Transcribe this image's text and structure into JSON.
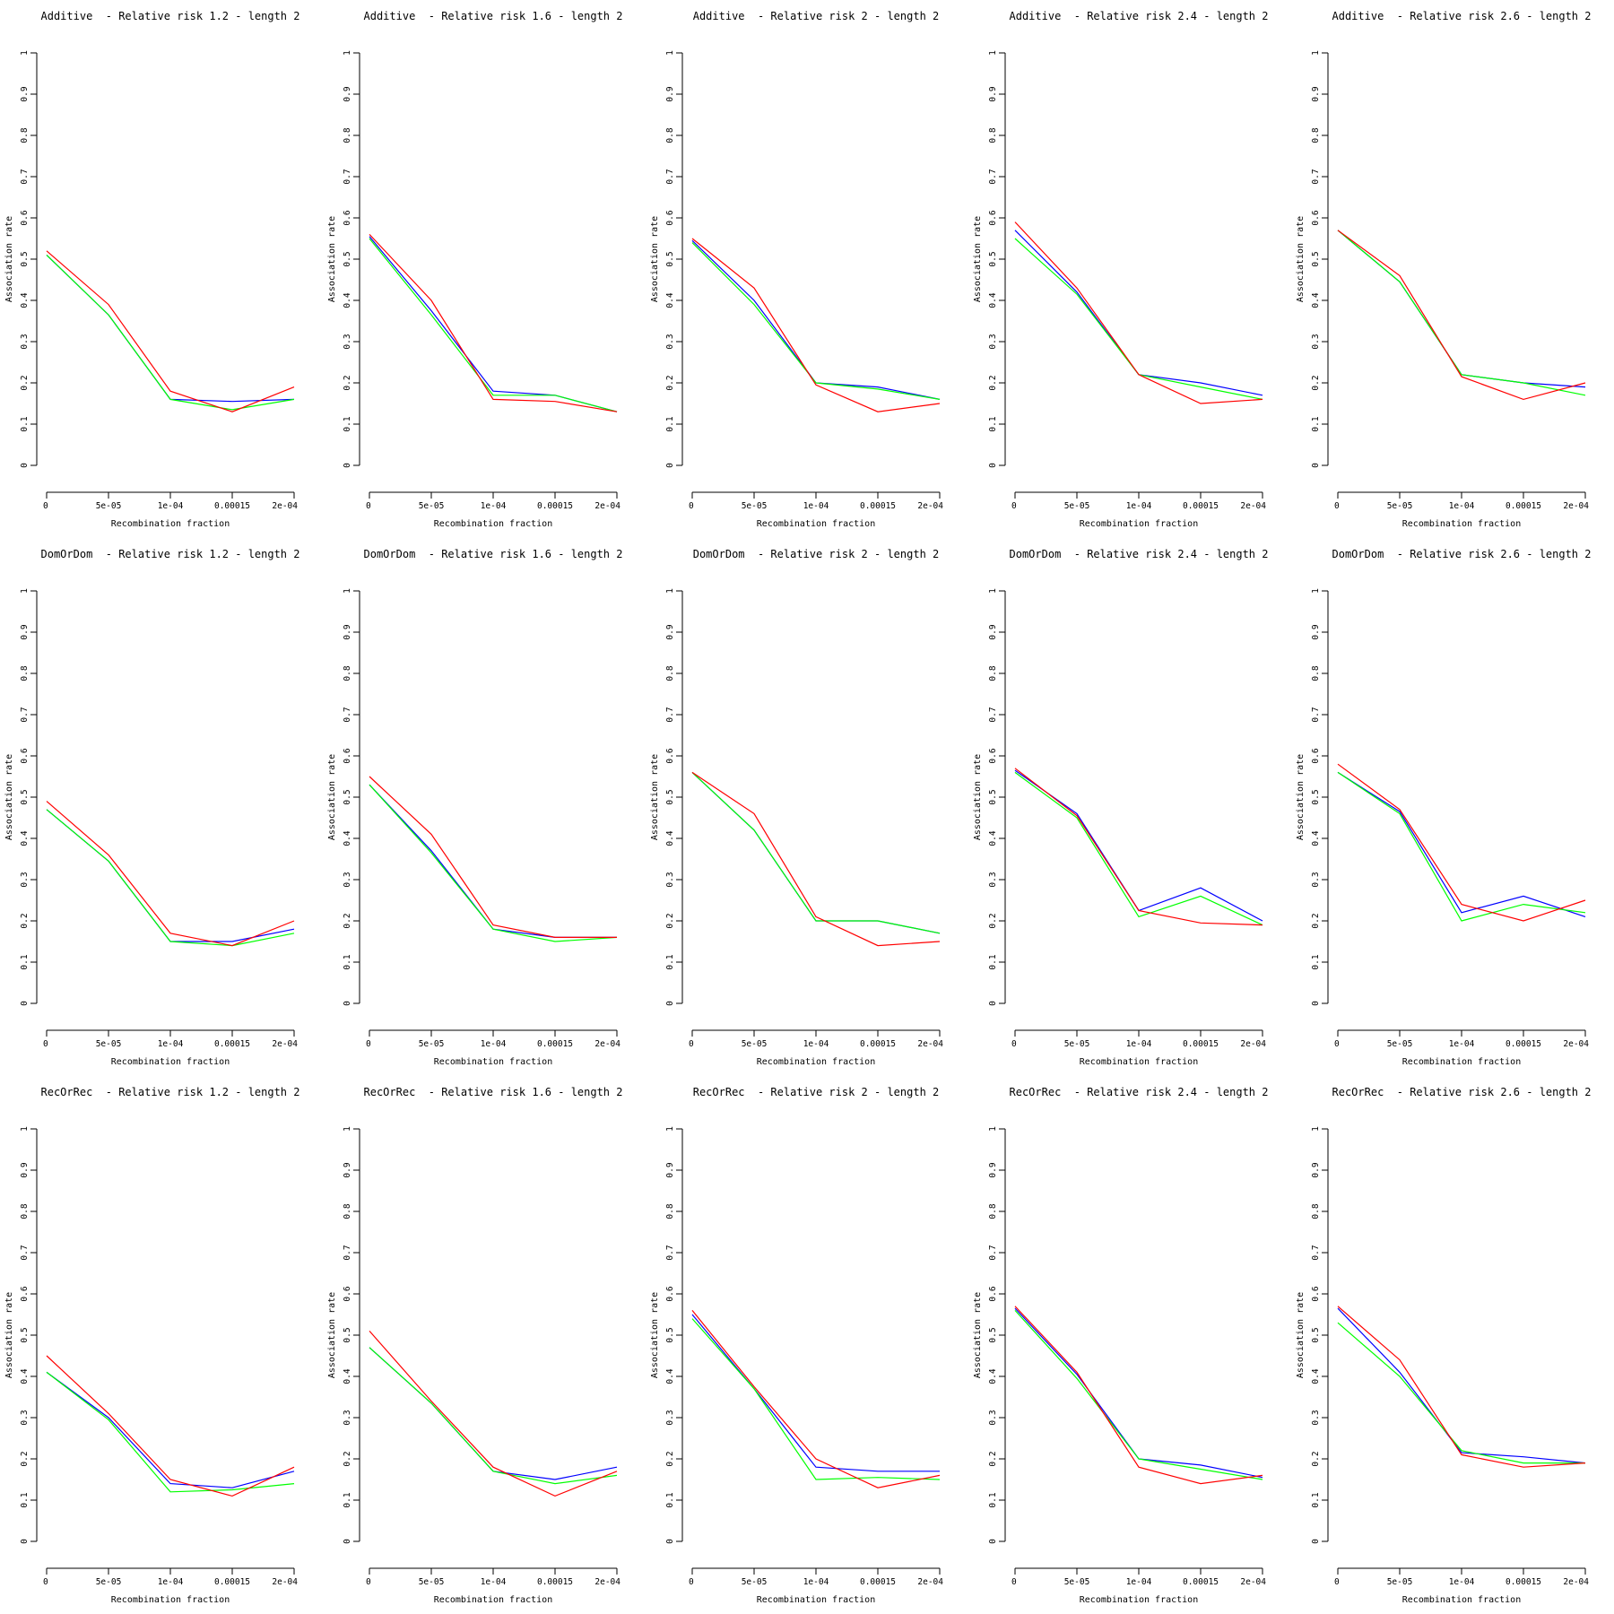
{
  "figure": {
    "rows": [
      "Additive",
      "DomOrDom",
      "RecOrRec"
    ],
    "relative_risks": [
      "1.2",
      "1.6",
      "2",
      "2.4",
      "2.6"
    ],
    "length": "2",
    "background": "#ffffff",
    "text_color": "#000000"
  },
  "axes": {
    "xlabel": "Recombination fraction",
    "ylabel": "Association rate",
    "x_tick_labels": [
      "0",
      "5e-05",
      "1e-04",
      "0.00015",
      "2e-04"
    ],
    "y_tick_labels": [
      "0",
      "0.1",
      "0.2",
      "0.3",
      "0.4",
      "0.5",
      "0.6",
      "0.7",
      "0.8",
      "0.9",
      "1"
    ],
    "ylim": [
      0,
      1
    ],
    "grid": false,
    "legend": "none"
  },
  "colors": {
    "red": "#ff0000",
    "green": "#00ff00",
    "blue": "#0000ff"
  },
  "chart_data": [
    {
      "type": "line",
      "title": "Additive  - Relative risk 1.2 - length 2",
      "model": "Additive",
      "relative_risk": 1.2,
      "length": 2,
      "x": [
        0,
        5e-05,
        0.0001,
        0.00015,
        0.0002
      ],
      "ylim": [
        0,
        1
      ],
      "series": [
        {
          "name": "blue",
          "color": "#0000ff",
          "values": [
            0.51,
            0.365,
            0.16,
            0.155,
            0.16
          ]
        },
        {
          "name": "green",
          "color": "#00ff00",
          "values": [
            0.51,
            0.365,
            0.16,
            0.135,
            0.16
          ]
        },
        {
          "name": "red",
          "color": "#ff0000",
          "values": [
            0.52,
            0.39,
            0.18,
            0.13,
            0.19
          ]
        }
      ]
    },
    {
      "type": "line",
      "title": "Additive  - Relative risk 1.6 - length 2",
      "model": "Additive",
      "relative_risk": 1.6,
      "length": 2,
      "x": [
        0,
        5e-05,
        0.0001,
        0.00015,
        0.0002
      ],
      "ylim": [
        0,
        1
      ],
      "series": [
        {
          "name": "blue",
          "color": "#0000ff",
          "values": [
            0.555,
            0.375,
            0.18,
            0.17,
            0.13
          ]
        },
        {
          "name": "green",
          "color": "#00ff00",
          "values": [
            0.55,
            0.365,
            0.17,
            0.17,
            0.13
          ]
        },
        {
          "name": "red",
          "color": "#ff0000",
          "values": [
            0.56,
            0.4,
            0.16,
            0.155,
            0.13
          ]
        }
      ]
    },
    {
      "type": "line",
      "title": "Additive  - Relative risk 2 - length 2",
      "model": "Additive",
      "relative_risk": 2,
      "length": 2,
      "x": [
        0,
        5e-05,
        0.0001,
        0.00015,
        0.0002
      ],
      "ylim": [
        0,
        1
      ],
      "series": [
        {
          "name": "blue",
          "color": "#0000ff",
          "values": [
            0.545,
            0.4,
            0.2,
            0.19,
            0.16
          ]
        },
        {
          "name": "green",
          "color": "#00ff00",
          "values": [
            0.54,
            0.39,
            0.2,
            0.185,
            0.16
          ]
        },
        {
          "name": "red",
          "color": "#ff0000",
          "values": [
            0.55,
            0.43,
            0.195,
            0.13,
            0.15
          ]
        }
      ]
    },
    {
      "type": "line",
      "title": "Additive  - Relative risk 2.4 - length 2",
      "model": "Additive",
      "relative_risk": 2.4,
      "length": 2,
      "x": [
        0,
        5e-05,
        0.0001,
        0.00015,
        0.0002
      ],
      "ylim": [
        0,
        1
      ],
      "series": [
        {
          "name": "blue",
          "color": "#0000ff",
          "values": [
            0.57,
            0.42,
            0.22,
            0.2,
            0.17
          ]
        },
        {
          "name": "green",
          "color": "#00ff00",
          "values": [
            0.55,
            0.415,
            0.22,
            0.19,
            0.16
          ]
        },
        {
          "name": "red",
          "color": "#ff0000",
          "values": [
            0.59,
            0.43,
            0.22,
            0.15,
            0.16
          ]
        }
      ]
    },
    {
      "type": "line",
      "title": "Additive  - Relative risk 2.6 - length 2",
      "model": "Additive",
      "relative_risk": 2.6,
      "length": 2,
      "x": [
        0,
        5e-05,
        0.0001,
        0.00015,
        0.0002
      ],
      "ylim": [
        0,
        1
      ],
      "series": [
        {
          "name": "blue",
          "color": "#0000ff",
          "values": [
            0.57,
            0.445,
            0.22,
            0.2,
            0.19
          ]
        },
        {
          "name": "green",
          "color": "#00ff00",
          "values": [
            0.57,
            0.445,
            0.22,
            0.2,
            0.17
          ]
        },
        {
          "name": "red",
          "color": "#ff0000",
          "values": [
            0.57,
            0.46,
            0.215,
            0.16,
            0.2
          ]
        }
      ]
    },
    {
      "type": "line",
      "title": "DomOrDom  - Relative risk 1.2 - length 2",
      "model": "DomOrDom",
      "relative_risk": 1.2,
      "length": 2,
      "x": [
        0,
        5e-05,
        0.0001,
        0.00015,
        0.0002
      ],
      "ylim": [
        0,
        1
      ],
      "series": [
        {
          "name": "blue",
          "color": "#0000ff",
          "values": [
            0.47,
            0.345,
            0.15,
            0.15,
            0.18
          ]
        },
        {
          "name": "green",
          "color": "#00ff00",
          "values": [
            0.47,
            0.345,
            0.15,
            0.14,
            0.17
          ]
        },
        {
          "name": "red",
          "color": "#ff0000",
          "values": [
            0.49,
            0.36,
            0.17,
            0.14,
            0.2
          ]
        }
      ]
    },
    {
      "type": "line",
      "title": "DomOrDom  - Relative risk 1.6 - length 2",
      "model": "DomOrDom",
      "relative_risk": 1.6,
      "length": 2,
      "x": [
        0,
        5e-05,
        0.0001,
        0.00015,
        0.0002
      ],
      "ylim": [
        0,
        1
      ],
      "series": [
        {
          "name": "blue",
          "color": "#0000ff",
          "values": [
            0.53,
            0.37,
            0.18,
            0.16,
            0.16
          ]
        },
        {
          "name": "green",
          "color": "#00ff00",
          "values": [
            0.53,
            0.365,
            0.18,
            0.15,
            0.16
          ]
        },
        {
          "name": "red",
          "color": "#ff0000",
          "values": [
            0.55,
            0.41,
            0.19,
            0.16,
            0.16
          ]
        }
      ]
    },
    {
      "type": "line",
      "title": "DomOrDom  - Relative risk 2 - length 2",
      "model": "DomOrDom",
      "relative_risk": 2,
      "length": 2,
      "x": [
        0,
        5e-05,
        0.0001,
        0.00015,
        0.0002
      ],
      "ylim": [
        0,
        1
      ],
      "series": [
        {
          "name": "blue",
          "color": "#0000ff",
          "values": [
            0.56,
            0.42,
            0.2,
            0.2,
            0.17
          ]
        },
        {
          "name": "green",
          "color": "#00ff00",
          "values": [
            0.56,
            0.42,
            0.2,
            0.2,
            0.17
          ]
        },
        {
          "name": "red",
          "color": "#ff0000",
          "values": [
            0.56,
            0.46,
            0.21,
            0.14,
            0.15
          ]
        }
      ]
    },
    {
      "type": "line",
      "title": "DomOrDom  - Relative risk 2.4 - length 2",
      "model": "DomOrDom",
      "relative_risk": 2.4,
      "length": 2,
      "x": [
        0,
        5e-05,
        0.0001,
        0.00015,
        0.0002
      ],
      "ylim": [
        0,
        1
      ],
      "series": [
        {
          "name": "blue",
          "color": "#0000ff",
          "values": [
            0.565,
            0.46,
            0.225,
            0.28,
            0.2
          ]
        },
        {
          "name": "green",
          "color": "#00ff00",
          "values": [
            0.56,
            0.45,
            0.21,
            0.26,
            0.19
          ]
        },
        {
          "name": "red",
          "color": "#ff0000",
          "values": [
            0.57,
            0.455,
            0.225,
            0.195,
            0.19
          ]
        }
      ]
    },
    {
      "type": "line",
      "title": "DomOrDom  - Relative risk 2.6 - length 2",
      "model": "DomOrDom",
      "relative_risk": 2.6,
      "length": 2,
      "x": [
        0,
        5e-05,
        0.0001,
        0.00015,
        0.0002
      ],
      "ylim": [
        0,
        1
      ],
      "series": [
        {
          "name": "blue",
          "color": "#0000ff",
          "values": [
            0.56,
            0.465,
            0.22,
            0.26,
            0.21
          ]
        },
        {
          "name": "green",
          "color": "#00ff00",
          "values": [
            0.56,
            0.46,
            0.2,
            0.24,
            0.22
          ]
        },
        {
          "name": "red",
          "color": "#ff0000",
          "values": [
            0.58,
            0.47,
            0.24,
            0.2,
            0.25
          ]
        }
      ]
    },
    {
      "type": "line",
      "title": "RecOrRec  - Relative risk 1.2 - length 2",
      "model": "RecOrRec",
      "relative_risk": 1.2,
      "length": 2,
      "x": [
        0,
        5e-05,
        0.0001,
        0.00015,
        0.0002
      ],
      "ylim": [
        0,
        1
      ],
      "series": [
        {
          "name": "blue",
          "color": "#0000ff",
          "values": [
            0.41,
            0.3,
            0.14,
            0.13,
            0.17
          ]
        },
        {
          "name": "green",
          "color": "#00ff00",
          "values": [
            0.41,
            0.295,
            0.12,
            0.125,
            0.14
          ]
        },
        {
          "name": "red",
          "color": "#ff0000",
          "values": [
            0.45,
            0.31,
            0.15,
            0.11,
            0.18
          ]
        }
      ]
    },
    {
      "type": "line",
      "title": "RecOrRec  - Relative risk 1.6 - length 2",
      "model": "RecOrRec",
      "relative_risk": 1.6,
      "length": 2,
      "x": [
        0,
        5e-05,
        0.0001,
        0.00015,
        0.0002
      ],
      "ylim": [
        0,
        1
      ],
      "series": [
        {
          "name": "blue",
          "color": "#0000ff",
          "values": [
            0.47,
            0.335,
            0.17,
            0.15,
            0.18
          ]
        },
        {
          "name": "green",
          "color": "#00ff00",
          "values": [
            0.47,
            0.335,
            0.17,
            0.14,
            0.16
          ]
        },
        {
          "name": "red",
          "color": "#ff0000",
          "values": [
            0.51,
            0.34,
            0.18,
            0.11,
            0.17
          ]
        }
      ]
    },
    {
      "type": "line",
      "title": "RecOrRec  - Relative risk 2 - length 2",
      "model": "RecOrRec",
      "relative_risk": 2,
      "length": 2,
      "x": [
        0,
        5e-05,
        0.0001,
        0.00015,
        0.0002
      ],
      "ylim": [
        0,
        1
      ],
      "series": [
        {
          "name": "blue",
          "color": "#0000ff",
          "values": [
            0.55,
            0.37,
            0.18,
            0.17,
            0.17
          ]
        },
        {
          "name": "green",
          "color": "#00ff00",
          "values": [
            0.54,
            0.37,
            0.15,
            0.155,
            0.15
          ]
        },
        {
          "name": "red",
          "color": "#ff0000",
          "values": [
            0.56,
            0.375,
            0.2,
            0.13,
            0.16
          ]
        }
      ]
    },
    {
      "type": "line",
      "title": "RecOrRec  - Relative risk 2.4 - length 2",
      "model": "RecOrRec",
      "relative_risk": 2.4,
      "length": 2,
      "x": [
        0,
        5e-05,
        0.0001,
        0.00015,
        0.0002
      ],
      "ylim": [
        0,
        1
      ],
      "series": [
        {
          "name": "blue",
          "color": "#0000ff",
          "values": [
            0.565,
            0.405,
            0.2,
            0.185,
            0.155
          ]
        },
        {
          "name": "green",
          "color": "#00ff00",
          "values": [
            0.56,
            0.395,
            0.2,
            0.175,
            0.15
          ]
        },
        {
          "name": "red",
          "color": "#ff0000",
          "values": [
            0.57,
            0.41,
            0.18,
            0.14,
            0.16
          ]
        }
      ]
    },
    {
      "type": "line",
      "title": "RecOrRec  - Relative risk 2.6 - length 2",
      "model": "RecOrRec",
      "relative_risk": 2.6,
      "length": 2,
      "x": [
        0,
        5e-05,
        0.0001,
        0.00015,
        0.0002
      ],
      "ylim": [
        0,
        1
      ],
      "series": [
        {
          "name": "blue",
          "color": "#0000ff",
          "values": [
            0.565,
            0.41,
            0.215,
            0.205,
            0.19
          ]
        },
        {
          "name": "green",
          "color": "#00ff00",
          "values": [
            0.53,
            0.4,
            0.22,
            0.19,
            0.19
          ]
        },
        {
          "name": "red",
          "color": "#ff0000",
          "values": [
            0.57,
            0.44,
            0.21,
            0.18,
            0.19
          ]
        }
      ]
    }
  ]
}
